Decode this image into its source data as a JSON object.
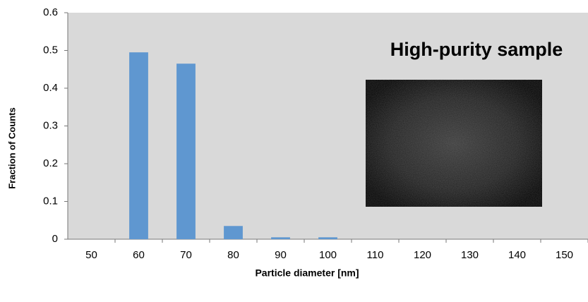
{
  "chart_data": {
    "type": "bar",
    "categories": [
      "50",
      "60",
      "70",
      "80",
      "90",
      "100",
      "110",
      "120",
      "130",
      "140",
      "150"
    ],
    "values": [
      0,
      0.495,
      0.465,
      0.035,
      0.005,
      0.005,
      0,
      0,
      0,
      0,
      0
    ],
    "color": "#5f97d0",
    "ylim": [
      0,
      0.6
    ],
    "yticks": [
      0,
      0.1,
      0.2,
      0.3,
      0.4,
      0.5,
      0.6
    ],
    "y_label": "Fraction of Counts",
    "x_label": "Particle diameter [nm]",
    "annotation": "High-purity sample",
    "grid": false
  }
}
